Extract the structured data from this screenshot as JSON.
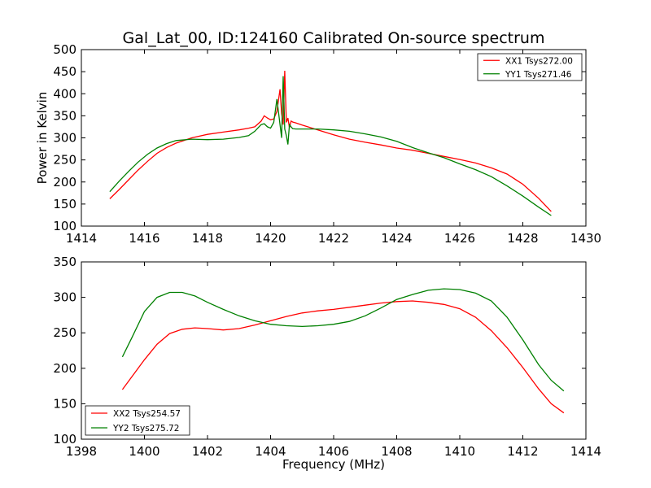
{
  "title": "Gal_Lat_00, ID:124160 Calibrated On-source spectrum",
  "colors": {
    "xx": "#ff0000",
    "yy": "#008000"
  },
  "chart_data": [
    {
      "type": "line",
      "xlabel": "",
      "ylabel": "Power in Kelvin",
      "xlim": [
        1414,
        1430
      ],
      "ylim": [
        100,
        500
      ],
      "xticks": [
        1414,
        1416,
        1418,
        1420,
        1422,
        1424,
        1426,
        1428,
        1430
      ],
      "yticks": [
        100,
        150,
        200,
        250,
        300,
        350,
        400,
        450,
        500
      ],
      "legend": "top-right",
      "series": [
        {
          "name": "XX1 Tsys272.00",
          "color": "#ff0000",
          "x": [
            1414.9,
            1415.2,
            1415.5,
            1415.8,
            1416.1,
            1416.4,
            1416.7,
            1417.0,
            1417.5,
            1418.0,
            1418.5,
            1419.0,
            1419.3,
            1419.5,
            1419.7,
            1419.8,
            1419.9,
            1420.0,
            1420.1,
            1420.2,
            1420.3,
            1420.35,
            1420.4,
            1420.45,
            1420.5,
            1420.55,
            1420.6,
            1420.65,
            1420.7,
            1420.8,
            1421.0,
            1421.5,
            1422.0,
            1422.5,
            1423.0,
            1423.5,
            1424.0,
            1424.5,
            1425.0,
            1425.5,
            1426.0,
            1426.5,
            1427.0,
            1427.5,
            1428.0,
            1428.5,
            1428.9
          ],
          "y": [
            162,
            183,
            205,
            227,
            247,
            265,
            278,
            288,
            300,
            308,
            313,
            318,
            322,
            325,
            338,
            350,
            345,
            341,
            343,
            360,
            410,
            355,
            330,
            452,
            335,
            345,
            323,
            338,
            336,
            334,
            329,
            318,
            307,
            297,
            290,
            284,
            277,
            272,
            265,
            258,
            251,
            243,
            232,
            218,
            195,
            163,
            133
          ]
        },
        {
          "name": "YY1 Tsys271.46",
          "color": "#008000",
          "x": [
            1414.9,
            1415.2,
            1415.5,
            1415.8,
            1416.1,
            1416.4,
            1416.7,
            1417.0,
            1417.5,
            1418.0,
            1418.5,
            1419.0,
            1419.3,
            1419.5,
            1419.7,
            1419.8,
            1419.9,
            1420.0,
            1420.1,
            1420.2,
            1420.3,
            1420.35,
            1420.4,
            1420.45,
            1420.5,
            1420.55,
            1420.6,
            1420.65,
            1420.7,
            1420.8,
            1421.0,
            1421.5,
            1422.0,
            1422.5,
            1423.0,
            1423.5,
            1424.0,
            1424.5,
            1425.0,
            1425.5,
            1426.0,
            1426.5,
            1427.0,
            1427.5,
            1428.0,
            1428.5,
            1428.9
          ],
          "y": [
            178,
            202,
            224,
            245,
            263,
            277,
            287,
            294,
            297,
            296,
            297,
            301,
            305,
            315,
            330,
            332,
            325,
            322,
            335,
            388,
            330,
            300,
            440,
            320,
            305,
            285,
            330,
            325,
            321,
            320,
            320,
            320,
            318,
            315,
            309,
            302,
            292,
            278,
            266,
            255,
            241,
            228,
            212,
            191,
            168,
            143,
            124
          ]
        }
      ]
    },
    {
      "type": "line",
      "xlabel": "Frequency (MHz)",
      "ylabel": "",
      "xlim": [
        1398,
        1414
      ],
      "ylim": [
        100,
        350
      ],
      "xticks": [
        1398,
        1400,
        1402,
        1404,
        1406,
        1408,
        1410,
        1412,
        1414
      ],
      "yticks": [
        100,
        150,
        200,
        250,
        300,
        350
      ],
      "legend": "bottom-left",
      "series": [
        {
          "name": "XX2 Tsys254.57",
          "color": "#ff0000",
          "x": [
            1399.3,
            1399.6,
            1400.0,
            1400.4,
            1400.8,
            1401.2,
            1401.6,
            1402.0,
            1402.5,
            1403.0,
            1403.5,
            1404.0,
            1404.5,
            1405.0,
            1405.5,
            1406.0,
            1406.5,
            1407.0,
            1407.5,
            1408.0,
            1408.5,
            1409.0,
            1409.5,
            1410.0,
            1410.5,
            1411.0,
            1411.5,
            1412.0,
            1412.5,
            1412.9,
            1413.3
          ],
          "y": [
            170,
            188,
            212,
            234,
            249,
            255,
            257,
            256,
            254,
            256,
            261,
            267,
            273,
            278,
            281,
            283,
            286,
            289,
            292,
            294,
            295,
            293,
            290,
            284,
            272,
            253,
            229,
            201,
            171,
            150,
            137
          ]
        },
        {
          "name": "YY2 Tsys275.72",
          "color": "#008000",
          "x": [
            1399.3,
            1399.6,
            1400.0,
            1400.4,
            1400.8,
            1401.2,
            1401.6,
            1402.0,
            1402.5,
            1403.0,
            1403.5,
            1404.0,
            1404.5,
            1405.0,
            1405.5,
            1406.0,
            1406.5,
            1407.0,
            1407.5,
            1408.0,
            1408.5,
            1409.0,
            1409.5,
            1410.0,
            1410.5,
            1411.0,
            1411.5,
            1412.0,
            1412.5,
            1412.9,
            1413.3
          ],
          "y": [
            216,
            243,
            280,
            300,
            307,
            307,
            302,
            293,
            283,
            274,
            267,
            262,
            260,
            259,
            260,
            262,
            266,
            274,
            285,
            297,
            304,
            310,
            312,
            311,
            306,
            295,
            272,
            240,
            205,
            183,
            168
          ]
        }
      ]
    }
  ]
}
